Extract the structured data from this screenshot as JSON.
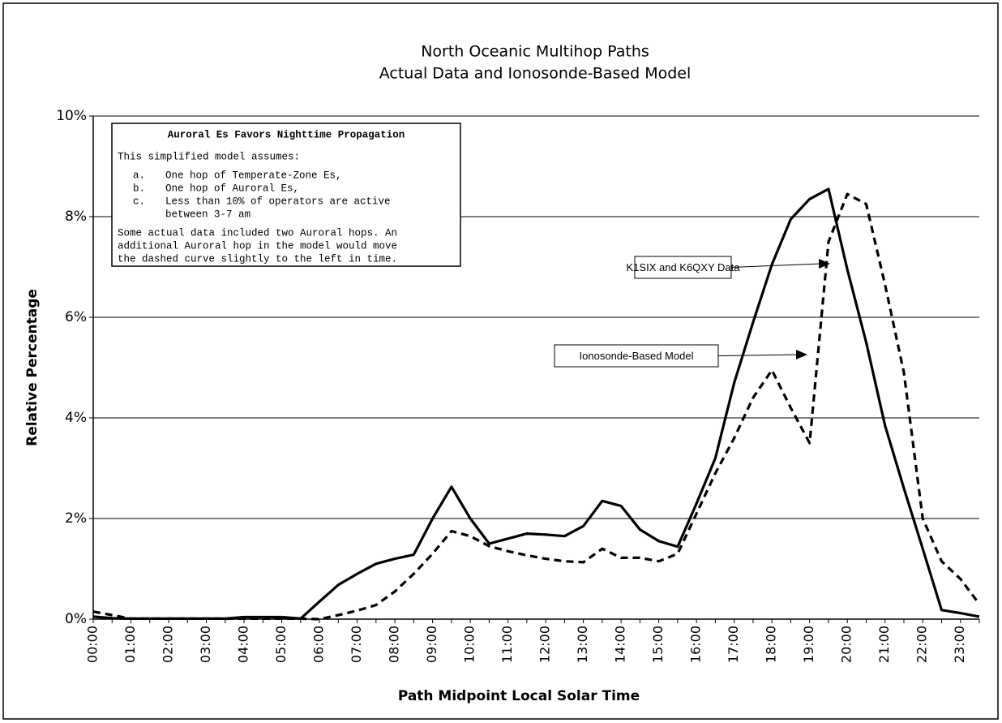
{
  "chart_data": {
    "type": "line",
    "title": [
      "North  Oceanic  Multihop  Paths",
      "Actual  Data  and  Ionosonde-Based  Model"
    ],
    "x_label": "Path  Midpoint  Local  Solar  Time",
    "y_label": "Relative  Percentage",
    "categories": [
      "00:00",
      null,
      "01:00",
      null,
      "02:00",
      null,
      "03:00",
      null,
      "04:00",
      null,
      "05:00",
      null,
      "06:00",
      null,
      "07:00",
      null,
      "08:00",
      null,
      "09:00",
      null,
      "10:00",
      null,
      "11:00",
      null,
      "12:00",
      null,
      "13:00",
      null,
      "14:00",
      null,
      "15:00",
      null,
      "16:00",
      null,
      "17:00",
      null,
      "18:00",
      null,
      "19:00",
      null,
      "20:00",
      null,
      "21:00",
      null,
      "22:00",
      null,
      "23:00",
      null
    ],
    "series": [
      {
        "name": "K1SIX and K6QXY Data",
        "color": "#000000",
        "dash": false,
        "values": [
          0.05,
          0.02,
          0.01,
          0.01,
          0.01,
          0.01,
          0.01,
          0.01,
          0.04,
          0.04,
          0.04,
          0.01,
          0.35,
          0.68,
          0.9,
          1.1,
          1.2,
          1.28,
          2.0,
          2.63,
          2.0,
          1.5,
          1.6,
          1.7,
          1.68,
          1.65,
          1.85,
          2.35,
          2.25,
          1.78,
          1.55,
          1.44,
          2.3,
          3.2,
          4.7,
          5.9,
          7.05,
          7.95,
          8.35,
          8.55,
          6.95,
          5.5,
          3.85,
          2.6,
          1.4,
          0.18,
          0.12,
          0.05
        ]
      },
      {
        "name": "Ionosonde-Based Model",
        "color": "#000000",
        "dash": true,
        "values": [
          0.15,
          0.08,
          0.01,
          0.01,
          0.01,
          0.01,
          0.01,
          0.01,
          0.01,
          0.01,
          0.01,
          0.01,
          0.0,
          0.08,
          0.17,
          0.28,
          0.55,
          0.9,
          1.3,
          1.75,
          1.65,
          1.45,
          1.35,
          1.27,
          1.2,
          1.15,
          1.13,
          1.4,
          1.22,
          1.22,
          1.15,
          1.3,
          2.1,
          2.9,
          3.6,
          4.4,
          4.95,
          4.2,
          3.5,
          7.5,
          8.45,
          8.25,
          6.65,
          4.9,
          2.0,
          1.15,
          0.8,
          0.3
        ]
      }
    ],
    "ylim": [
      0,
      10
    ],
    "yticks": [
      {
        "value": 0,
        "label": "0%"
      },
      {
        "value": 2,
        "label": "2%"
      },
      {
        "value": 4,
        "label": "4%"
      },
      {
        "value": 6,
        "label": "6%"
      },
      {
        "value": 8,
        "label": "8%"
      },
      {
        "value": 10,
        "label": "10%"
      }
    ],
    "grid": true,
    "note": {
      "title": "Auroral Es Favors Nighttime Propagation",
      "intro": "This simplified model assumes:",
      "items": [
        {
          "marker": "a.",
          "lines": [
            "One hop of Temperate-Zone Es,"
          ]
        },
        {
          "marker": "b.",
          "lines": [
            "One hop of Auroral Es,"
          ]
        },
        {
          "marker": "c.",
          "lines": [
            "Less than 10% of operators are active",
            "between 3-7 am"
          ]
        }
      ],
      "closing": [
        "Some actual data included two Auroral hops. An",
        "additional Auroral hop in the model would move",
        "the dashed curve slightly to the left in time."
      ]
    }
  }
}
